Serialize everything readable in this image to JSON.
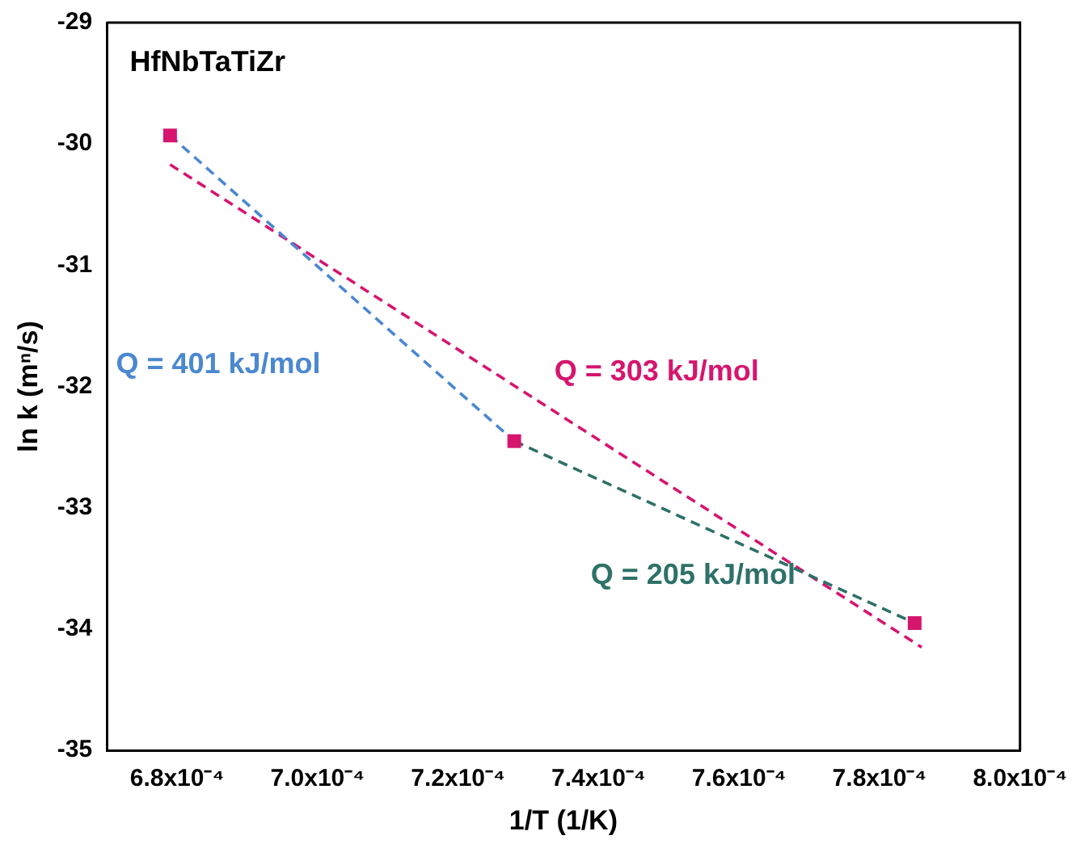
{
  "chart_data": {
    "type": "scatter",
    "xlabel": "1/T (1/K)",
    "ylabel": "ln k (mⁿ/s)",
    "xlim": [
      0.00067,
      0.0008
    ],
    "ylim": [
      -35,
      -29
    ],
    "xticks": [
      {
        "value": 0.00068,
        "label": "6.8x10⁻⁴"
      },
      {
        "value": 0.0007,
        "label": "7.0x10⁻⁴"
      },
      {
        "value": 0.00072,
        "label": "7.2x10⁻⁴"
      },
      {
        "value": 0.00074,
        "label": "7.4x10⁻⁴"
      },
      {
        "value": 0.00076,
        "label": "7.6x10⁻⁴"
      },
      {
        "value": 0.00078,
        "label": "7.8x10⁻⁴"
      },
      {
        "value": 0.0008,
        "label": "8.0x10⁻⁴"
      }
    ],
    "yticks": [
      -35,
      -34,
      -33,
      -32,
      -31,
      -30,
      -29
    ],
    "grid": false,
    "legend": false,
    "series": [
      {
        "color": "#d6156f",
        "marker": "square",
        "x": [
          0.000679,
          0.000728,
          0.000785
        ],
        "values": [
          -29.93,
          -32.45,
          -33.95
        ]
      },
      {
        "type": "line",
        "color": "#4a88d0",
        "marker": "none",
        "line_style": "dashed",
        "x": [
          0.000679,
          0.000728
        ],
        "values": [
          -29.93,
          -32.45
        ]
      },
      {
        "type": "line",
        "color": "#2e7168",
        "marker": "none",
        "line_style": "dashed",
        "x": [
          0.000728,
          0.000785
        ],
        "values": [
          -32.45,
          -33.95
        ]
      },
      {
        "type": "line",
        "color": "#d6156f",
        "marker": "none",
        "line_style": "dashed",
        "x": [
          0.000679,
          0.000786
        ],
        "values": [
          -30.17,
          -34.15
        ]
      }
    ],
    "annotations": [
      "HfNbTaTiZr",
      "Q = 401 kJ/mol",
      "Q = 205 kJ/mol",
      "Q = 303 kJ/mol"
    ]
  }
}
